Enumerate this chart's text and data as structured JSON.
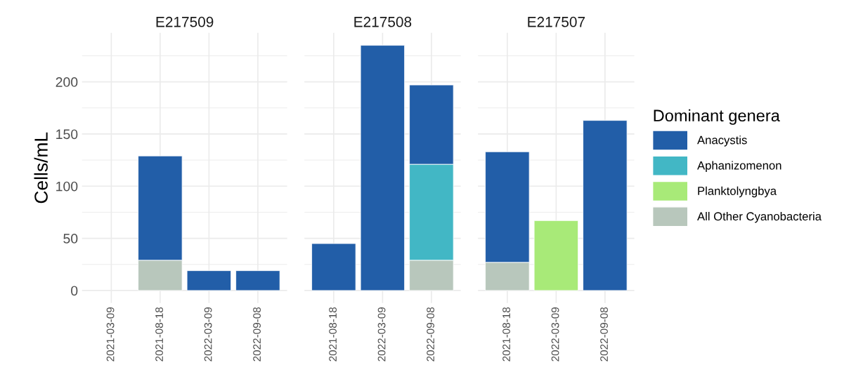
{
  "chart_data": [
    {
      "type": "bar",
      "title": "E217509",
      "ylabel": "Cells/mL",
      "stacked": true,
      "grid": true,
      "categories": [
        "2021-03-09",
        "2021-08-18",
        "2022-03-09",
        "2022-09-08"
      ],
      "ylim": [
        -12,
        247
      ],
      "yticks": [
        0,
        50,
        100,
        150,
        200
      ],
      "series": [
        {
          "color": "#b8c7bc",
          "values": [
            null,
            29,
            null,
            null
          ]
        },
        {
          "color": "#225ea8",
          "values": [
            null,
            100,
            19,
            19
          ]
        }
      ]
    },
    {
      "type": "bar",
      "title": "E217508",
      "stacked": true,
      "grid": true,
      "tick_labels": "x",
      "categories": [
        "2021-08-18",
        "2022-03-09",
        "2022-09-08"
      ],
      "ylim": [
        -12,
        247
      ],
      "yticks": [
        0,
        50,
        100,
        150,
        200
      ],
      "series": [
        {
          "color": "#b8c7bc",
          "values": [
            null,
            null,
            29
          ]
        },
        {
          "color": "#42b7c5",
          "values": [
            null,
            null,
            92
          ]
        },
        {
          "color": "#225ea8",
          "values": [
            45,
            235,
            76
          ]
        }
      ]
    },
    {
      "type": "bar",
      "title": "E217507",
      "stacked": true,
      "grid": true,
      "tick_labels": "x",
      "legend": "right",
      "legend_title": "Dominant genera",
      "categories": [
        "2021-08-18",
        "2022-03-09",
        "2022-09-08"
      ],
      "ylim": [
        -12,
        247
      ],
      "yticks": [
        0,
        50,
        100,
        150,
        200
      ],
      "series": [
        {
          "name": "All Other Cyanobacteria",
          "color": "#b8c7bc",
          "values": [
            27,
            null,
            null
          ]
        },
        {
          "name": "Planktolyngbya",
          "color": "#a8ea78",
          "values": [
            null,
            67,
            null
          ]
        },
        {
          "name": "Aphanizomenon",
          "color": "#42b7c5",
          "values": [
            null,
            null,
            null
          ]
        },
        {
          "name": "Anacystis",
          "color": "#225ea8",
          "values": [
            106,
            null,
            163
          ]
        }
      ]
    }
  ]
}
